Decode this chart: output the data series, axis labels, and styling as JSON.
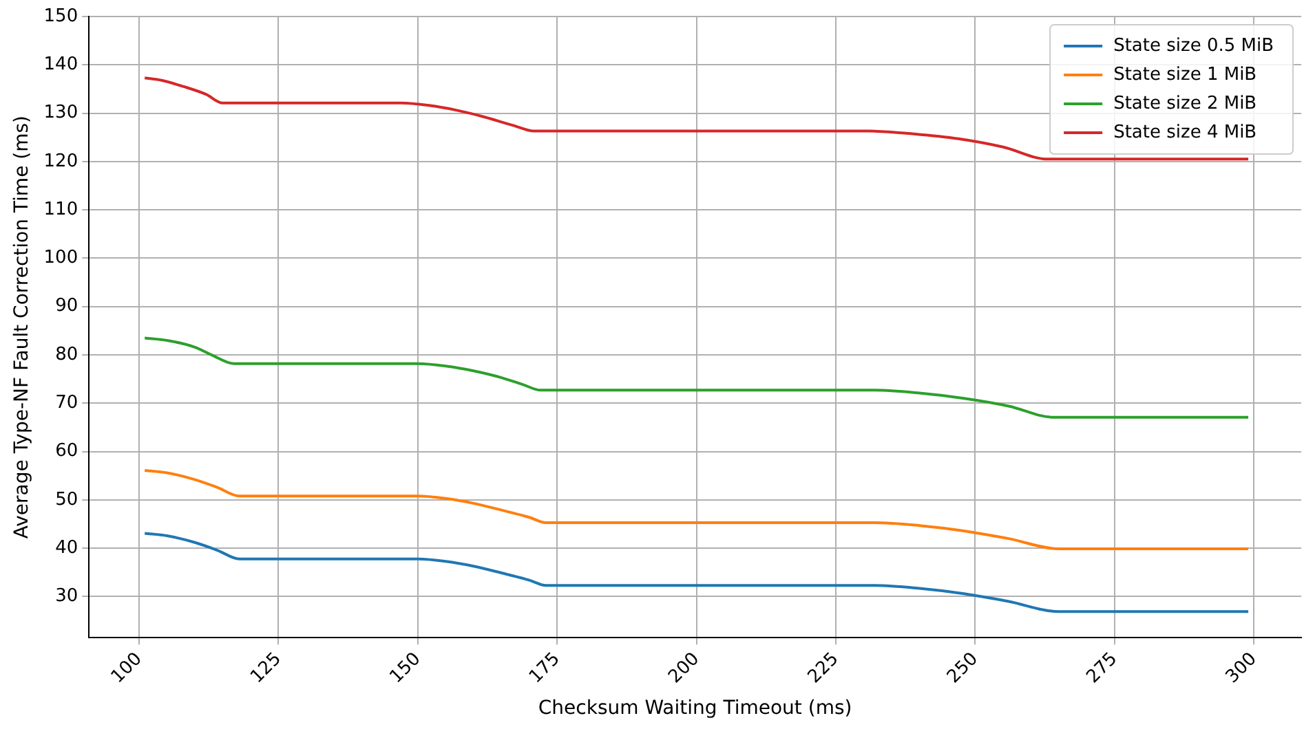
{
  "chart_data": {
    "type": "line",
    "xlabel": "Checksum Waiting Timeout (ms)",
    "ylabel": "Average Type-NF Fault Correction Time (ms)",
    "xlim": [
      91,
      308.5
    ],
    "xticks": [
      100,
      125,
      150,
      175,
      200,
      225,
      250,
      275,
      300
    ],
    "ylim": [
      21.5,
      150
    ],
    "yticks": [
      30,
      40,
      50,
      60,
      70,
      80,
      90,
      100,
      110,
      120,
      130,
      140,
      150
    ],
    "grid": true,
    "legend": "top right",
    "marker": "none",
    "line_style": "solid",
    "series": [
      {
        "name": "State size 0.5 MiB",
        "color": "#1f77b4",
        "x": [
          101,
          105,
          110,
          114,
          118,
          150,
          155,
          160,
          165,
          170,
          173,
          232,
          240,
          248,
          256,
          265,
          299
        ],
        "values": [
          43.1,
          42.6,
          41.2,
          39.6,
          37.8,
          37.8,
          37.3,
          36.3,
          34.9,
          33.4,
          32.3,
          32.3,
          31.7,
          30.6,
          29.0,
          26.9,
          26.9
        ]
      },
      {
        "name": "State size 1 MiB",
        "color": "#ff7f0e",
        "x": [
          101,
          105,
          110,
          114,
          118,
          150,
          155,
          160,
          165,
          170,
          173,
          232,
          240,
          248,
          256,
          265,
          299
        ],
        "values": [
          56.1,
          55.6,
          54.2,
          52.6,
          50.8,
          50.8,
          50.3,
          49.3,
          47.9,
          46.4,
          45.3,
          45.3,
          44.7,
          43.6,
          42.0,
          39.9,
          39.9
        ]
      },
      {
        "name": "State size 2 MiB",
        "color": "#2ca02c",
        "x": [
          101,
          105,
          110,
          113,
          117,
          150,
          155,
          160,
          165,
          169,
          172,
          232,
          240,
          248,
          256,
          264,
          299
        ],
        "values": [
          83.5,
          83.0,
          81.6,
          80.0,
          78.2,
          78.2,
          77.7,
          76.7,
          75.3,
          73.8,
          72.7,
          72.7,
          72.1,
          71.0,
          69.4,
          67.1,
          67.1
        ]
      },
      {
        "name": "State size 4 MiB",
        "color": "#d62728",
        "x": [
          101,
          104,
          108,
          112,
          115,
          147,
          152,
          157,
          162,
          167,
          171,
          231,
          239,
          247,
          255,
          263,
          299
        ],
        "values": [
          137.3,
          136.8,
          135.5,
          133.9,
          132.1,
          132.1,
          131.6,
          130.6,
          129.2,
          127.5,
          126.3,
          126.3,
          125.7,
          124.7,
          123.0,
          120.5,
          120.5
        ]
      }
    ]
  }
}
